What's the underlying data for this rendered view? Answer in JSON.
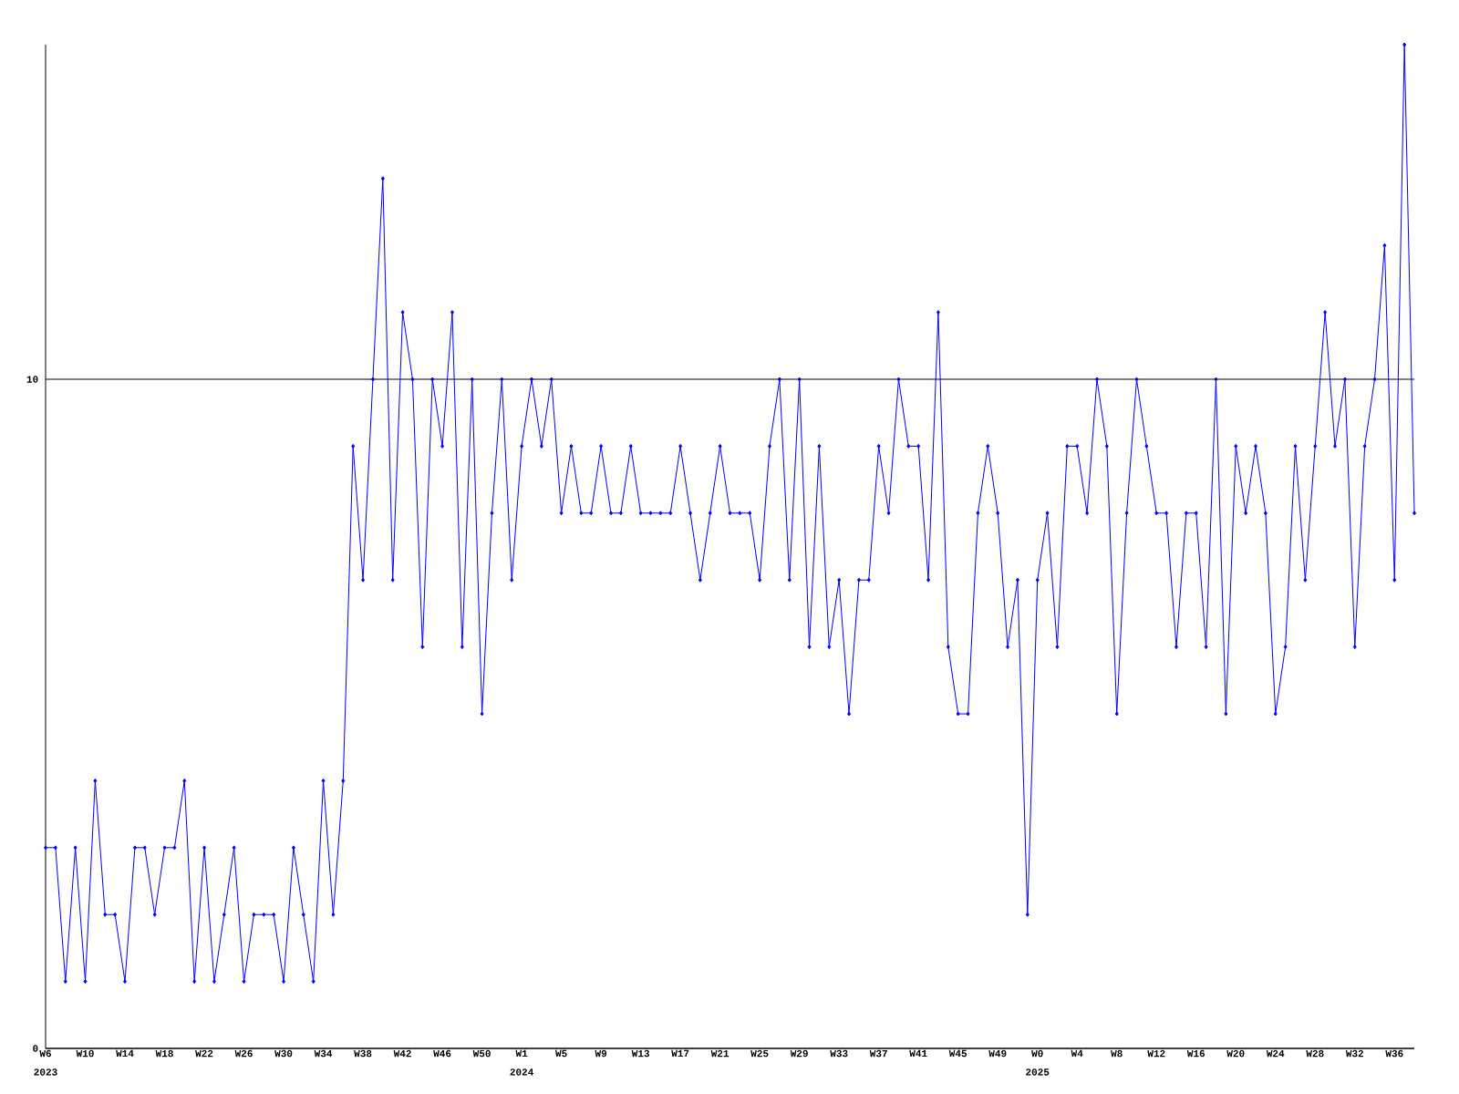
{
  "chart_data": {
    "type": "line",
    "categories": [
      "W6",
      null,
      null,
      null,
      "W10",
      null,
      null,
      null,
      "W14",
      null,
      null,
      null,
      "W18",
      null,
      null,
      null,
      "W22",
      null,
      null,
      null,
      "W26",
      null,
      null,
      null,
      "W30",
      null,
      null,
      null,
      "W34",
      null,
      null,
      null,
      "W38",
      null,
      null,
      null,
      "W42",
      null,
      null,
      null,
      "W46",
      null,
      null,
      null,
      "W50",
      null,
      null,
      null,
      "W1",
      null,
      null,
      null,
      "W5",
      null,
      null,
      null,
      "W9",
      null,
      null,
      null,
      "W13",
      null,
      null,
      null,
      "W17",
      null,
      null,
      null,
      "W21",
      null,
      null,
      null,
      "W25",
      null,
      null,
      null,
      "W29",
      null,
      null,
      null,
      "W33",
      null,
      null,
      null,
      "W37",
      null,
      null,
      null,
      "W41",
      null,
      null,
      null,
      "W45",
      null,
      null,
      null,
      "W49",
      null,
      null,
      null,
      "W0",
      null,
      null,
      null,
      "W4",
      null,
      null,
      null,
      "W8",
      null,
      null,
      null,
      "W12",
      null,
      null,
      null,
      "W16",
      null,
      null,
      null,
      "W20",
      null,
      null,
      null,
      "W24",
      null,
      null,
      null,
      "W28",
      null,
      null,
      null,
      "W32",
      null,
      null,
      null,
      "W36",
      null,
      null
    ],
    "values": [
      3,
      3,
      1,
      3,
      1,
      4,
      2,
      2,
      1,
      3,
      3,
      2,
      3,
      3,
      4,
      1,
      3,
      1,
      2,
      3,
      1,
      2,
      2,
      2,
      1,
      3,
      2,
      1,
      4,
      2,
      4,
      9,
      7,
      10,
      13,
      7,
      11,
      10,
      6,
      10,
      9,
      11,
      6,
      10,
      5,
      8,
      10,
      7,
      9,
      10,
      9,
      10,
      8,
      9,
      8,
      8,
      9,
      8,
      8,
      9,
      8,
      8,
      8,
      8,
      9,
      8,
      7,
      8,
      9,
      8,
      8,
      8,
      7,
      9,
      10,
      7,
      10,
      6,
      9,
      6,
      7,
      5,
      7,
      7,
      9,
      8,
      10,
      9,
      9,
      7,
      11,
      6,
      5,
      5,
      8,
      9,
      8,
      6,
      7,
      2,
      7,
      8,
      6,
      9,
      9,
      8,
      10,
      9,
      5,
      8,
      10,
      9,
      8,
      8,
      6,
      8,
      8,
      6,
      10,
      5,
      9,
      8,
      9,
      8,
      5,
      6,
      9,
      7,
      9,
      11,
      9,
      10,
      6,
      9,
      10,
      12,
      7,
      15,
      8
    ],
    "color": "#0000ff",
    "ylim": [
      0,
      15
    ],
    "yticks": [
      0,
      10
    ],
    "grid": "y",
    "marker": "diamond",
    "line_style": "solid",
    "annotations": [
      "2023",
      "2024",
      "2025"
    ]
  }
}
